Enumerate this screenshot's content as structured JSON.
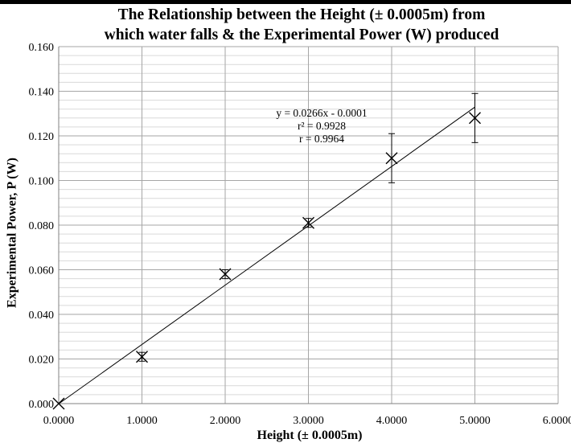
{
  "chart_data": {
    "type": "scatter",
    "title_line1": "The Relationship between the Height (± 0.0005m) from",
    "title_line2": "which water falls & the Experimental Power (W) produced",
    "xlabel": "Height (± 0.0005m)",
    "ylabel": "Experimental Power, P (W)",
    "xlim": [
      0,
      6
    ],
    "ylim": [
      0,
      0.16
    ],
    "x_ticks": [
      "0.0000",
      "1.0000",
      "2.0000",
      "3.0000",
      "4.0000",
      "5.0000",
      "6.0000"
    ],
    "y_ticks": [
      "0.000",
      "0.020",
      "0.040",
      "0.060",
      "0.080",
      "0.100",
      "0.120",
      "0.140",
      "0.160"
    ],
    "grid": true,
    "marker": "x",
    "series": [
      {
        "x": [
          0,
          1,
          2,
          3,
          4,
          5
        ],
        "y": [
          0.0,
          0.021,
          0.058,
          0.081,
          0.11,
          0.128
        ],
        "error": [
          0.0,
          0.002,
          0.002,
          0.002,
          0.011,
          0.011
        ]
      }
    ],
    "trendline": {
      "slope": 0.0266,
      "intercept": -0.0001,
      "equation": "y = 0.0266x - 0.0001",
      "r_squared": "r² = 0.9928",
      "r": "r = 0.9964"
    }
  }
}
